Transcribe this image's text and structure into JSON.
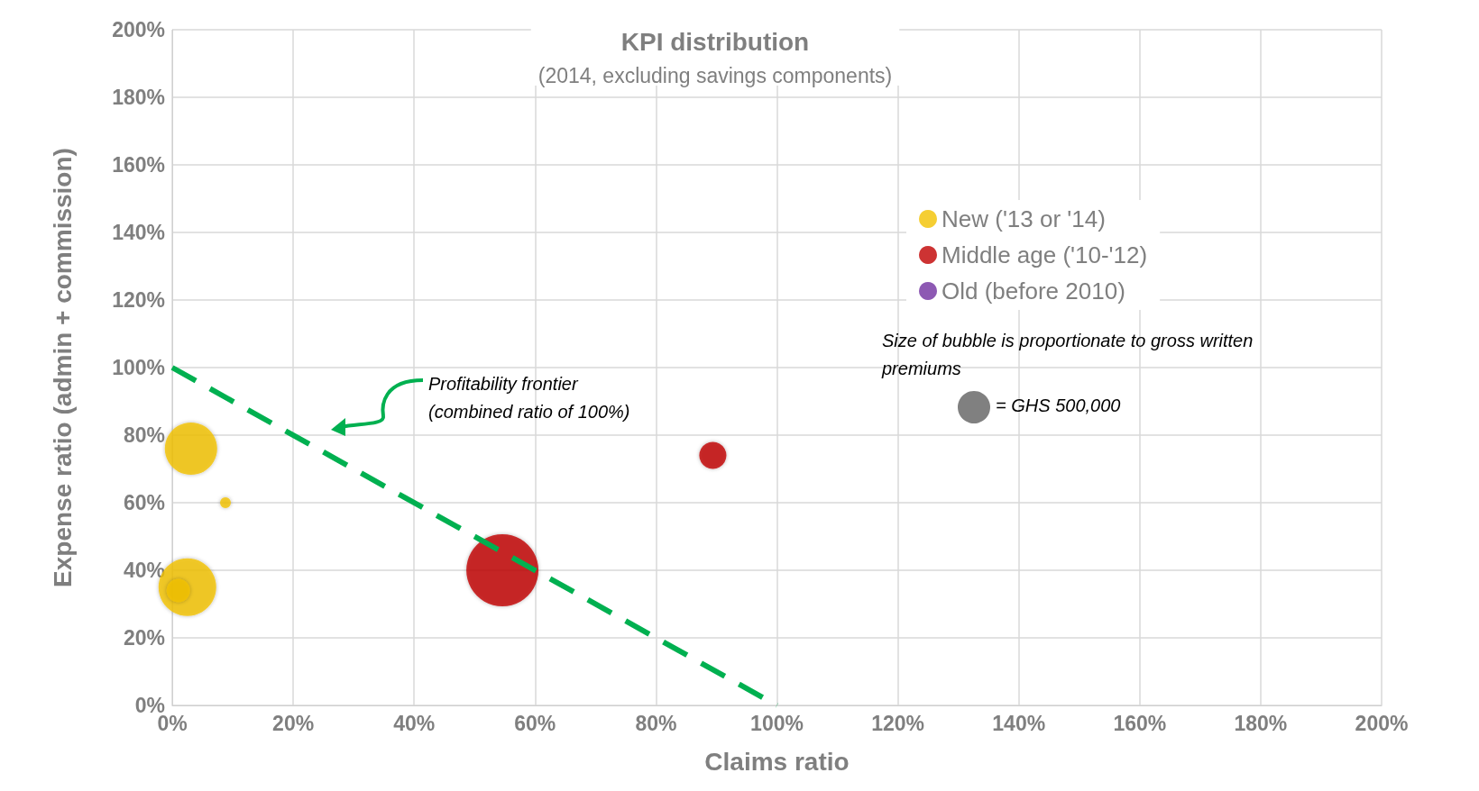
{
  "chart_data": {
    "type": "bubble",
    "title": "KPI distribution",
    "subtitle": "(2014, excluding savings components)",
    "xlabel": "Claims ratio",
    "ylabel": "Expense ratio (admin + commission)",
    "xlim": [
      0,
      200
    ],
    "ylim": [
      0,
      200
    ],
    "xticks": [
      {
        "value": 0,
        "label": "0%"
      },
      {
        "value": 20,
        "label": "20%"
      },
      {
        "value": 40,
        "label": "40%"
      },
      {
        "value": 60,
        "label": "60%"
      },
      {
        "value": 80,
        "label": "80%"
      },
      {
        "value": 100,
        "label": "100%"
      },
      {
        "value": 120,
        "label": "120%"
      },
      {
        "value": 140,
        "label": "140%"
      },
      {
        "value": 160,
        "label": "160%"
      },
      {
        "value": 180,
        "label": "180%"
      },
      {
        "value": 200,
        "label": "200%"
      }
    ],
    "yticks": [
      {
        "value": 0,
        "label": "0%"
      },
      {
        "value": 20,
        "label": "20%"
      },
      {
        "value": 40,
        "label": "40%"
      },
      {
        "value": 60,
        "label": "60%"
      },
      {
        "value": 80,
        "label": "80%"
      },
      {
        "value": 100,
        "label": "100%"
      },
      {
        "value": 120,
        "label": "120%"
      },
      {
        "value": 140,
        "label": "140%"
      },
      {
        "value": 160,
        "label": "160%"
      },
      {
        "value": 180,
        "label": "180%"
      },
      {
        "value": 200,
        "label": "200%"
      }
    ],
    "series": [
      {
        "name": "New ('13 or '14)",
        "color": "#f2c200",
        "x": [
          3.1,
          8.8,
          2.5,
          1
        ],
        "values": [
          76,
          60,
          35,
          34
        ],
        "sizes": [
          1300000,
          55000,
          1580000,
          260000
        ]
      },
      {
        "name": "Middle age ('10-'12)",
        "color": "#c00000",
        "x": [
          54.6,
          89.4
        ],
        "values": [
          40,
          74
        ],
        "sizes": [
          2470000,
          350000
        ]
      },
      {
        "name": "Old (before 2010)",
        "color": "#7030a0"
      },
      {
        "type": "line",
        "color": "#00b050",
        "x": [
          0,
          100
        ],
        "values": [
          100,
          0
        ],
        "line_style": "dashed",
        "marker": "none"
      }
    ],
    "size_legend": [
      {
        "value": 500000,
        "label": "= GHS 500,000"
      }
    ],
    "annotations": [
      "Profitability frontier\n(combined ratio of 100%)",
      "Size of bubble is proportionate to gross written premiums"
    ],
    "marker": "circle",
    "grid": true,
    "legend": "right"
  }
}
